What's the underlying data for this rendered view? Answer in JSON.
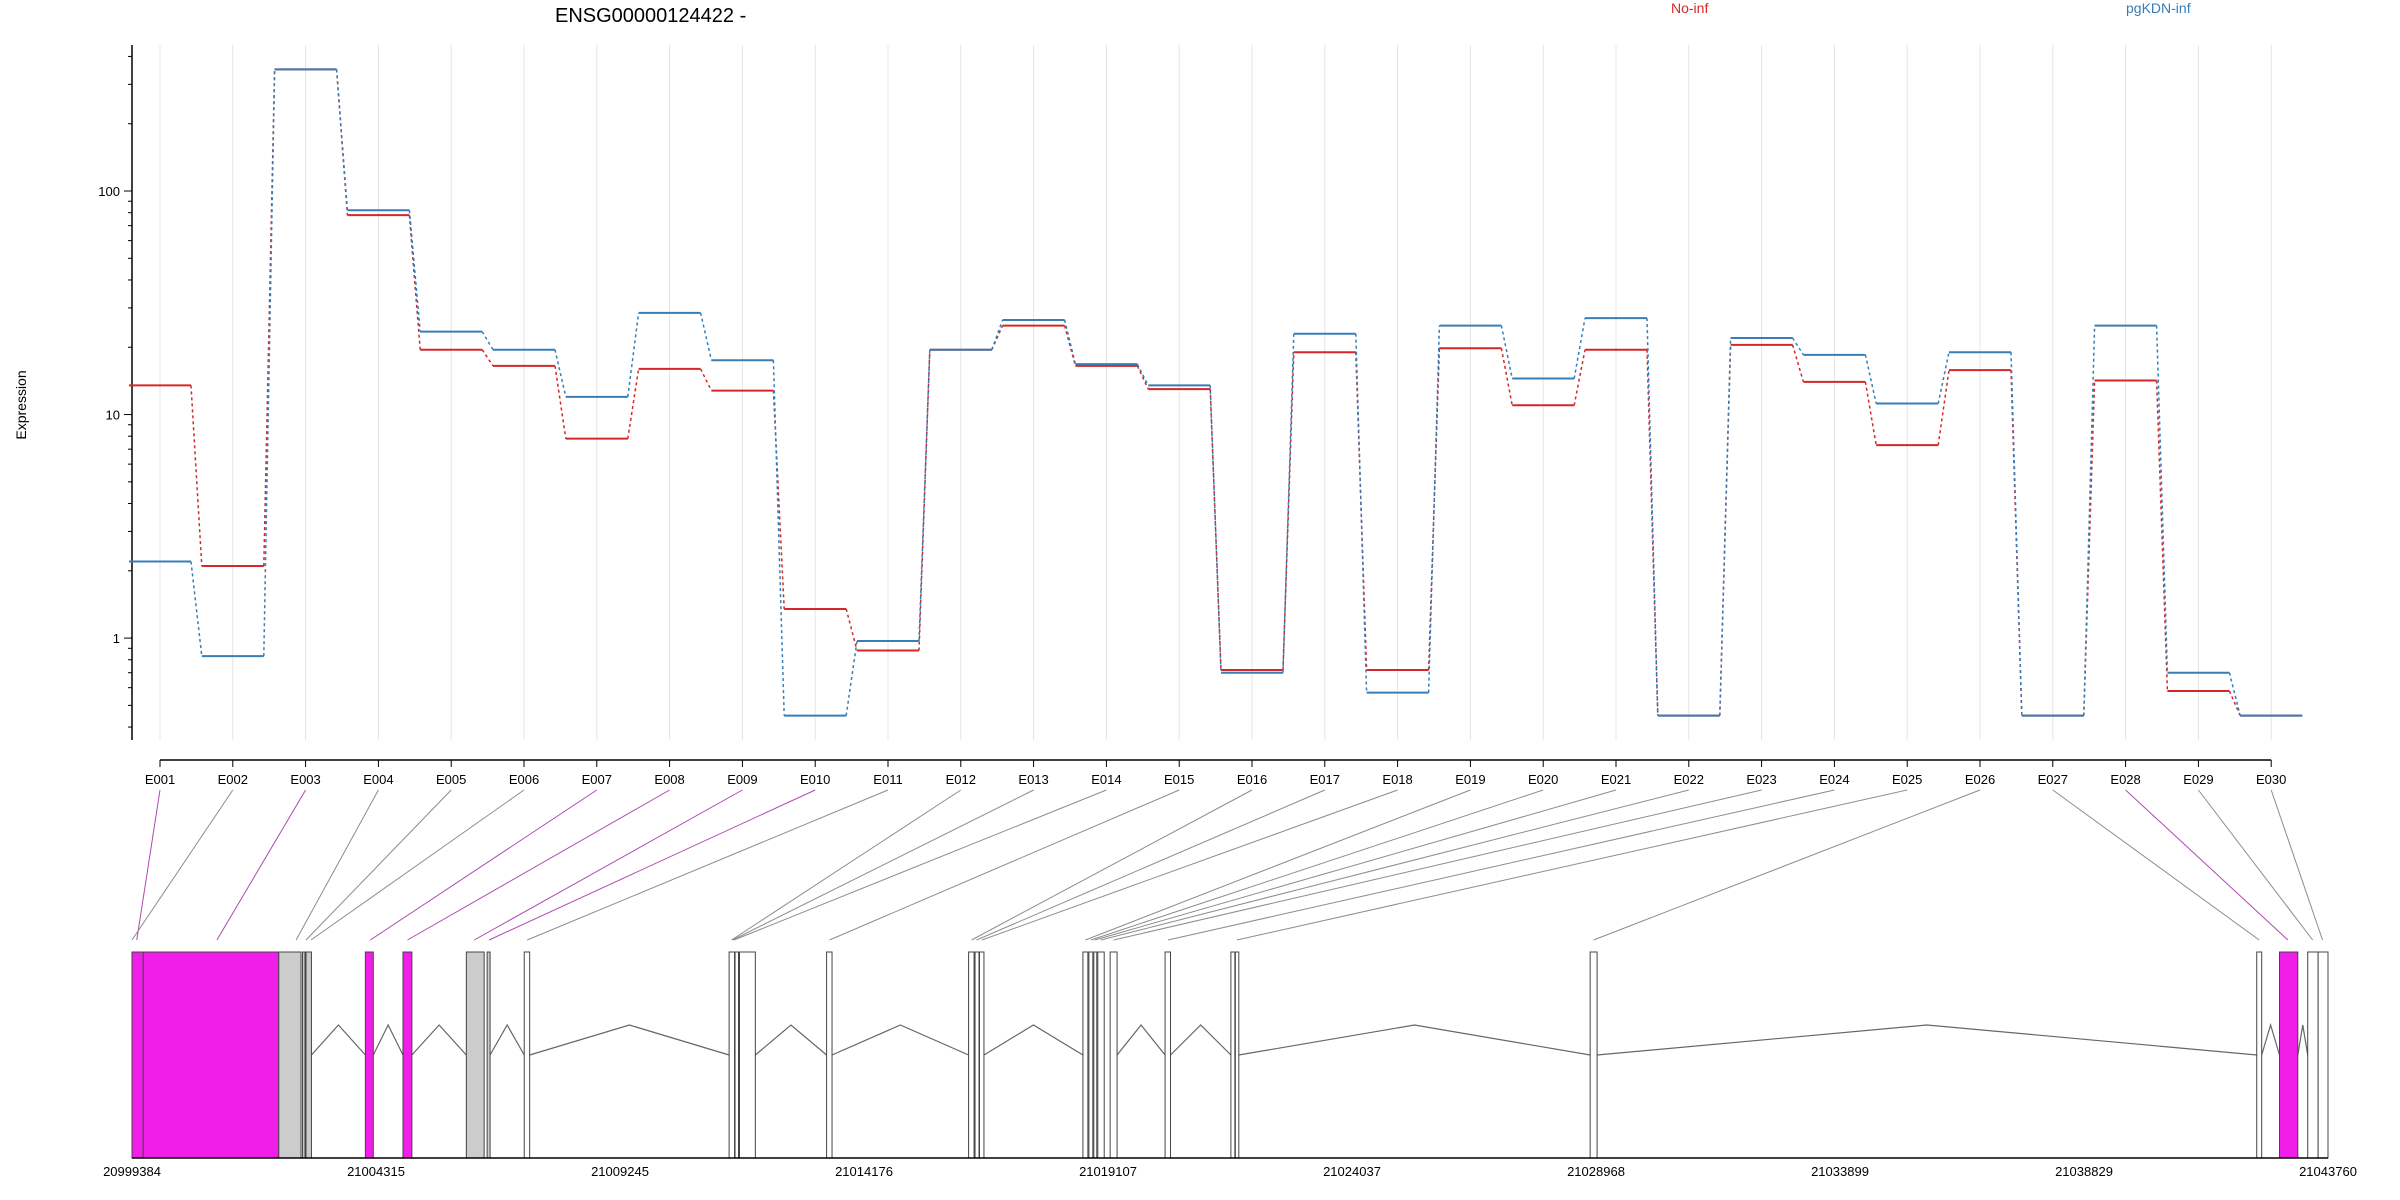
{
  "chart_data": {
    "type": "line",
    "title": "ENSG00000124422 -",
    "ylabel": "Expression",
    "yscale": "log",
    "ylim": [
      0.35,
      450
    ],
    "y_ticks": [
      1,
      10,
      100
    ],
    "y_tick_labels": [
      "1",
      "10",
      "100"
    ],
    "grid": "vertical-light",
    "legend_position": "top",
    "series_colors": {
      "No-inf": "#d62728",
      "pgKDN-inf": "#377eb8"
    },
    "categories": [
      "E001",
      "E002",
      "E003",
      "E004",
      "E005",
      "E006",
      "E007",
      "E008",
      "E009",
      "E010",
      "E011",
      "E012",
      "E013",
      "E014",
      "E015",
      "E016",
      "E017",
      "E018",
      "E019",
      "E020",
      "E021",
      "E022",
      "E023",
      "E024",
      "E025",
      "E026",
      "E027",
      "E028",
      "E029",
      "E030"
    ],
    "series": [
      {
        "name": "No-inf",
        "color": "#d62728",
        "values": [
          13.5,
          2.1,
          350,
          78,
          19.5,
          16.5,
          7.8,
          16,
          12.8,
          1.35,
          0.88,
          19.5,
          25,
          16.5,
          13,
          0.72,
          19,
          0.72,
          19.8,
          11,
          19.5,
          0.45,
          20.5,
          14,
          7.3,
          15.8,
          0.45,
          14.2,
          0.58,
          0.45
        ]
      },
      {
        "name": "pgKDN-inf",
        "color": "#377eb8",
        "values": [
          2.2,
          0.83,
          350,
          82,
          23.5,
          19.5,
          12,
          28.5,
          17.5,
          0.45,
          0.97,
          19.5,
          26.5,
          16.8,
          13.5,
          0.7,
          23,
          0.57,
          25,
          14.5,
          27,
          0.45,
          22,
          18.5,
          11.2,
          19,
          0.45,
          25,
          0.7,
          0.45
        ]
      }
    ],
    "gene_axis_labels": [
      "20999384",
      "21004315",
      "21009245",
      "21014176",
      "21019107",
      "21024037",
      "21028968",
      "21033899",
      "21038829",
      "21043760"
    ],
    "gene_range": [
      20999384,
      21043760
    ],
    "highlighted_exon_color": "#f01ee8",
    "exon_color": "#ffffff",
    "intron_color": "#666666",
    "exons": [
      {
        "start": 20999384,
        "end": 20999610,
        "fill": "#f01ee8"
      },
      {
        "start": 20999610,
        "end": 21002350,
        "fill": "#f01ee8"
      },
      {
        "start": 21002350,
        "end": 21002800,
        "fill": "#cccccc"
      },
      {
        "start": 21002830,
        "end": 21002880,
        "fill": "#cccccc"
      },
      {
        "start": 21002900,
        "end": 21003010,
        "fill": "#cccccc"
      },
      {
        "start": 21004100,
        "end": 21004260,
        "fill": "#f01ee8"
      },
      {
        "start": 21004860,
        "end": 21005040,
        "fill": "#f01ee8"
      },
      {
        "start": 21006140,
        "end": 21006500,
        "fill": "#cccccc"
      },
      {
        "start": 21006560,
        "end": 21006620,
        "fill": "#cccccc"
      },
      {
        "start": 21007310,
        "end": 21007420,
        "fill": "#ffffff"
      },
      {
        "start": 21011450,
        "end": 21011560,
        "fill": "#ffffff"
      },
      {
        "start": 21011570,
        "end": 21011640,
        "fill": "#ffffff"
      },
      {
        "start": 21011660,
        "end": 21011980,
        "fill": "#ffffff"
      },
      {
        "start": 21013420,
        "end": 21013530,
        "fill": "#ffffff"
      },
      {
        "start": 21016290,
        "end": 21016400,
        "fill": "#ffffff"
      },
      {
        "start": 21016420,
        "end": 21016500,
        "fill": "#ffffff"
      },
      {
        "start": 21016510,
        "end": 21016600,
        "fill": "#ffffff"
      },
      {
        "start": 21018600,
        "end": 21018700,
        "fill": "#ffffff"
      },
      {
        "start": 21018720,
        "end": 21018800,
        "fill": "#ffffff"
      },
      {
        "start": 21018820,
        "end": 21018880,
        "fill": "#ffffff"
      },
      {
        "start": 21018900,
        "end": 21019030,
        "fill": "#ffffff"
      },
      {
        "start": 21019150,
        "end": 21019290,
        "fill": "#ffffff"
      },
      {
        "start": 21020260,
        "end": 21020370,
        "fill": "#ffffff"
      },
      {
        "start": 21021590,
        "end": 21021670,
        "fill": "#ffffff"
      },
      {
        "start": 21021680,
        "end": 21021750,
        "fill": "#ffffff"
      },
      {
        "start": 21028850,
        "end": 21028990,
        "fill": "#ffffff"
      },
      {
        "start": 21042320,
        "end": 21042420,
        "fill": "#ffffff"
      },
      {
        "start": 21042780,
        "end": 21043150,
        "fill": "#f01ee8"
      },
      {
        "start": 21043350,
        "end": 21043560,
        "fill": "#ffffff"
      },
      {
        "start": 21043560,
        "end": 21043760,
        "fill": "#ffffff"
      }
    ],
    "exon_link_targets": [
      20999480,
      20999384,
      21001100,
      21002700,
      21002900,
      21003000,
      21004200,
      21004950,
      21006300,
      21006600,
      21007370,
      21011500,
      21011520,
      21011550,
      21013480,
      21016350,
      21016450,
      21016560,
      21018650,
      21018760,
      21018840,
      21018960,
      21019220,
      21020320,
      21021710,
      21028920,
      21042370,
      21042950,
      21043450,
      21043650
    ],
    "exon_link_highlight": [
      true,
      false,
      true,
      false,
      false,
      false,
      true,
      true,
      true,
      true,
      false,
      false,
      false,
      false,
      false,
      false,
      false,
      false,
      false,
      false,
      false,
      false,
      false,
      false,
      false,
      false,
      false,
      true,
      false,
      false
    ]
  }
}
